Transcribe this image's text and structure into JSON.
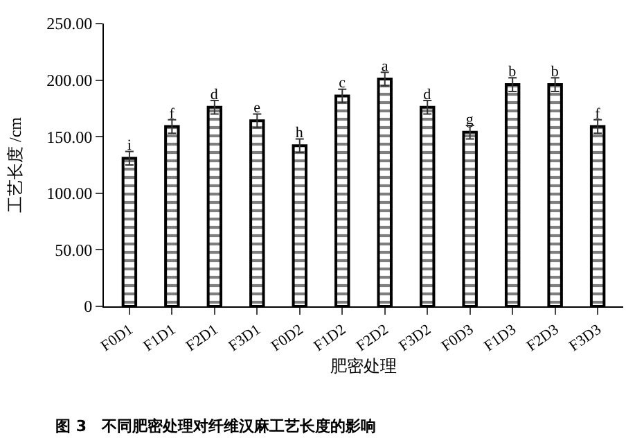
{
  "chart_data": {
    "type": "bar",
    "xlabel": "肥密处理",
    "ylabel": "工艺长度 /cm",
    "categories": [
      "F0D1",
      "F1D1",
      "F2D1",
      "F3D1",
      "F0D2",
      "F1D2",
      "F2D2",
      "F3D2",
      "F0D3",
      "F1D3",
      "F2D3",
      "F3D3"
    ],
    "values": [
      131,
      159,
      176,
      164,
      142,
      186,
      201,
      176,
      154,
      196,
      196,
      159
    ],
    "errors": [
      6,
      6,
      6,
      6,
      6,
      6,
      6,
      6,
      6,
      6,
      6,
      6
    ],
    "value_labels": [
      "i",
      "f",
      "d",
      "e",
      "h",
      "c",
      "a",
      "d",
      "g",
      "b",
      "b",
      "f"
    ],
    "color": "#000000",
    "ylim": [
      0,
      250
    ],
    "yticks": [
      0,
      {
        "value": 50,
        "label": "50.00"
      },
      {
        "value": 100,
        "label": "100.00"
      },
      {
        "value": 150,
        "label": "150.00"
      },
      {
        "value": 200,
        "label": "200.00"
      },
      {
        "value": 250,
        "label": "250.00"
      }
    ],
    "annotations": [
      "图 3　不同肥密处理对纤维汉麻工艺长度的影响"
    ]
  }
}
